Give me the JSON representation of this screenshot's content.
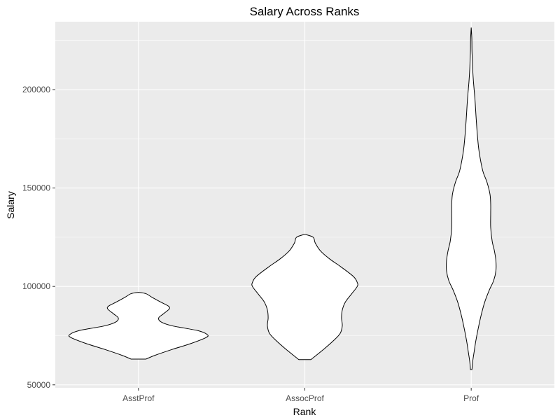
{
  "chart_data": {
    "type": "violin",
    "title": "Salary Across Ranks",
    "xlabel": "Rank",
    "ylabel": "Salary",
    "categories": [
      "AsstProf",
      "AssocProf",
      "Prof"
    ],
    "ylim": [
      48500,
      234500
    ],
    "y_ticks": [
      50000,
      100000,
      150000,
      200000
    ],
    "y_tick_labels": [
      "50000",
      "100000",
      "150000",
      "200000"
    ],
    "grid": true,
    "panel_background": "#ebebeb",
    "violin_fill": "#ffffff",
    "violin_stroke": "#000000",
    "distributions": [
      {
        "category": "AsstProf",
        "min": 63100,
        "max": 97000,
        "profile": [
          [
            63100,
            0.1
          ],
          [
            65000,
            0.22
          ],
          [
            68000,
            0.45
          ],
          [
            71000,
            0.7
          ],
          [
            74000,
            0.9
          ],
          [
            75500,
            0.92
          ],
          [
            77500,
            0.8
          ],
          [
            80000,
            0.45
          ],
          [
            82000,
            0.3
          ],
          [
            84000,
            0.27
          ],
          [
            86000,
            0.33
          ],
          [
            88500,
            0.41
          ],
          [
            90000,
            0.4
          ],
          [
            92000,
            0.3
          ],
          [
            94500,
            0.18
          ],
          [
            96300,
            0.1
          ],
          [
            97000,
            0.0
          ]
        ]
      },
      {
        "category": "AssocProf",
        "min": 62800,
        "max": 126500,
        "profile": [
          [
            62800,
            0.08
          ],
          [
            64000,
            0.12
          ],
          [
            68000,
            0.25
          ],
          [
            72000,
            0.37
          ],
          [
            76000,
            0.47
          ],
          [
            80000,
            0.5
          ],
          [
            84000,
            0.49
          ],
          [
            88000,
            0.5
          ],
          [
            92000,
            0.54
          ],
          [
            96000,
            0.62
          ],
          [
            100000,
            0.7
          ],
          [
            102000,
            0.7
          ],
          [
            105000,
            0.65
          ],
          [
            110000,
            0.48
          ],
          [
            114000,
            0.33
          ],
          [
            118000,
            0.21
          ],
          [
            122000,
            0.14
          ],
          [
            125000,
            0.11
          ],
          [
            126500,
            0.0
          ]
        ]
      },
      {
        "category": "Prof",
        "min": 57800,
        "max": 231500,
        "profile": [
          [
            57800,
            0.01
          ],
          [
            62000,
            0.02
          ],
          [
            67000,
            0.04
          ],
          [
            72000,
            0.06
          ],
          [
            78000,
            0.09
          ],
          [
            85000,
            0.13
          ],
          [
            92000,
            0.18
          ],
          [
            98000,
            0.24
          ],
          [
            103000,
            0.3
          ],
          [
            108000,
            0.33
          ],
          [
            113000,
            0.33
          ],
          [
            118000,
            0.31
          ],
          [
            123000,
            0.28
          ],
          [
            130000,
            0.26
          ],
          [
            137000,
            0.26
          ],
          [
            142000,
            0.26
          ],
          [
            147000,
            0.25
          ],
          [
            153000,
            0.21
          ],
          [
            158000,
            0.16
          ],
          [
            163000,
            0.13
          ],
          [
            170000,
            0.1
          ],
          [
            178000,
            0.08
          ],
          [
            186000,
            0.065
          ],
          [
            195000,
            0.05
          ],
          [
            204000,
            0.03
          ],
          [
            210000,
            0.02
          ],
          [
            215000,
            0.015
          ],
          [
            220000,
            0.01
          ],
          [
            226000,
            0.008
          ],
          [
            231500,
            0.0
          ]
        ]
      }
    ]
  }
}
